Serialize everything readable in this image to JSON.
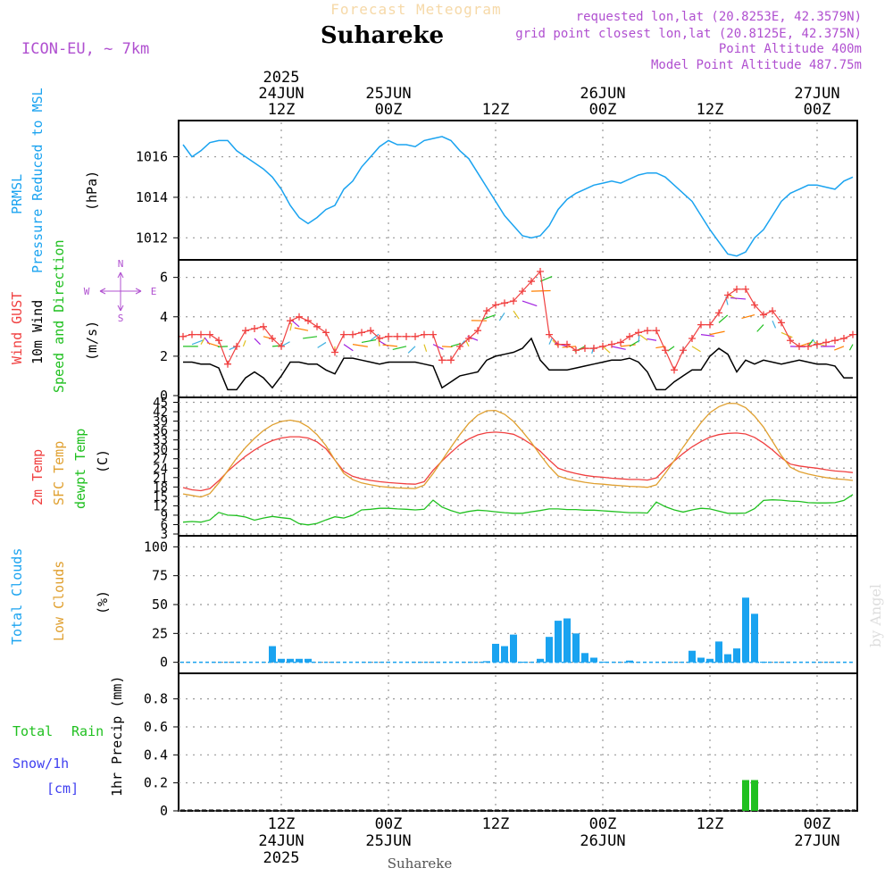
{
  "header": {
    "faded_title": "Forecast Meteogram",
    "location": "Suhareke",
    "model": "ICON-EU, ~ 7km",
    "requested": "requested lon,lat (20.8253E, 42.3579N)",
    "grid_point": "grid point closest lon,lat (20.8125E, 42.375N)",
    "point_altitude": "Point Altitude 400m",
    "model_altitude": "Model Point Altitude 487.75m",
    "footer_location": "Suhareke",
    "credit": "by Angel"
  },
  "time_axis": {
    "top_labels": [
      {
        "hour": 12,
        "lines": [
          "2025",
          "24JUN",
          "12Z"
        ]
      },
      {
        "hour": 24,
        "lines": [
          "25JUN",
          "00Z"
        ]
      },
      {
        "hour": 36,
        "lines": [
          "12Z"
        ]
      },
      {
        "hour": 48,
        "lines": [
          "26JUN",
          "00Z"
        ]
      },
      {
        "hour": 60,
        "lines": [
          "12Z"
        ]
      },
      {
        "hour": 72,
        "lines": [
          "27JUN",
          "00Z"
        ]
      }
    ],
    "bottom_labels": [
      {
        "hour": 12,
        "lines": [
          "12Z",
          "24JUN",
          "2025"
        ]
      },
      {
        "hour": 24,
        "lines": [
          "00Z",
          "25JUN"
        ]
      },
      {
        "hour": 36,
        "lines": [
          "12Z"
        ]
      },
      {
        "hour": 48,
        "lines": [
          "00Z",
          "26JUN"
        ]
      },
      {
        "hour": 60,
        "lines": [
          "12Z"
        ]
      },
      {
        "hour": 72,
        "lines": [
          "00Z",
          "27JUN"
        ]
      }
    ]
  },
  "panels": {
    "pressure": {
      "labels": [
        "PRMSL",
        "Pressure Reduced to MSL"
      ],
      "unit": "(hPa)"
    },
    "wind": {
      "labels": [
        "Wind GUST",
        "10m Wind",
        "Speed and Direction"
      ],
      "unit": "(m/s)",
      "compass": [
        "N",
        "W",
        "E",
        "S"
      ]
    },
    "temp": {
      "labels": [
        "2m Temp",
        "SFC Temp",
        "dewpt Temp"
      ],
      "unit": "(C)"
    },
    "clouds": {
      "labels": [
        "Total Clouds",
        "Low Clouds"
      ],
      "unit": "(%)"
    },
    "precip": {
      "labels": [
        "Total",
        "Rain",
        "Snow/1h",
        "[cm]"
      ],
      "unit": "1hr Precip (mm)"
    }
  },
  "colors": {
    "pressure": "#1aa3f0",
    "gust": "#f04040",
    "wind": "#000000",
    "temp2m": "#f04040",
    "sfc": "#e0a030",
    "dewpt": "#20c020",
    "clouds": "#1aa3f0",
    "low_clouds": "#e0a030",
    "rain": "#20c020",
    "snow": "#4040f0",
    "header_purple": "#b050d0",
    "grid": "#999999"
  },
  "chart_data": [
    {
      "type": "line",
      "title": "PRMSL Pressure Reduced to MSL",
      "ylabel": "(hPa)",
      "ylim": [
        1011,
        1017.7
      ],
      "yticks": [
        1012,
        1014,
        1016
      ],
      "x": [
        1,
        2,
        3,
        4,
        5,
        6,
        7,
        8,
        9,
        10,
        11,
        12,
        13,
        14,
        15,
        16,
        17,
        18,
        19,
        20,
        21,
        22,
        23,
        24,
        25,
        26,
        27,
        28,
        29,
        30,
        31,
        32,
        33,
        34,
        35,
        36,
        37,
        38,
        39,
        40,
        41,
        42,
        43,
        44,
        45,
        46,
        47,
        48,
        49,
        50,
        51,
        52,
        53,
        54,
        55,
        56,
        57,
        58,
        59,
        60,
        61,
        62,
        63,
        64,
        65,
        66,
        67,
        68,
        69,
        70,
        71,
        72,
        73,
        74,
        75,
        76
      ],
      "values": [
        1016.6,
        1016.0,
        1016.3,
        1016.7,
        1016.8,
        1016.8,
        1016.3,
        1016.0,
        1015.7,
        1015.4,
        1015.0,
        1014.4,
        1013.6,
        1013.0,
        1012.7,
        1013.0,
        1013.4,
        1013.6,
        1014.4,
        1014.8,
        1015.5,
        1016.0,
        1016.5,
        1016.8,
        1016.6,
        1016.6,
        1016.5,
        1016.8,
        1016.9,
        1017.0,
        1016.8,
        1016.3,
        1015.9,
        1015.2,
        1014.5,
        1013.8,
        1013.1,
        1012.6,
        1012.1,
        1012.0,
        1012.1,
        1012.6,
        1013.4,
        1013.9,
        1014.2,
        1014.4,
        1014.6,
        1014.7,
        1014.8,
        1014.7,
        1014.9,
        1015.1,
        1015.2,
        1015.2,
        1015.0,
        1014.6,
        1014.2,
        1013.8,
        1013.1,
        1012.4,
        1011.8,
        1011.2,
        1011.1,
        1011.3,
        1012.0,
        1012.4,
        1013.1,
        1013.8,
        1014.2,
        1014.4,
        1014.6,
        1014.6,
        1014.5,
        1014.4,
        1014.8,
        1015.0
      ]
    },
    {
      "type": "line",
      "title": "Wind GUST / 10m Wind Speed and Direction",
      "ylabel": "(m/s)",
      "ylim": [
        0,
        6.8
      ],
      "yticks": [
        0,
        2,
        4,
        6
      ],
      "x": [
        1,
        2,
        3,
        4,
        5,
        6,
        7,
        8,
        9,
        10,
        11,
        12,
        13,
        14,
        15,
        16,
        17,
        18,
        19,
        20,
        21,
        22,
        23,
        24,
        25,
        26,
        27,
        28,
        29,
        30,
        31,
        32,
        33,
        34,
        35,
        36,
        37,
        38,
        39,
        40,
        41,
        42,
        43,
        44,
        45,
        46,
        47,
        48,
        49,
        50,
        51,
        52,
        53,
        54,
        55,
        56,
        57,
        58,
        59,
        60,
        61,
        62,
        63,
        64,
        65,
        66,
        67,
        68,
        69,
        70,
        71,
        72,
        73,
        74,
        75,
        76
      ],
      "series": [
        {
          "name": "Wind GUST",
          "values": [
            3.0,
            3.1,
            3.1,
            3.1,
            2.8,
            1.6,
            2.5,
            3.3,
            3.4,
            3.5,
            2.9,
            2.5,
            3.8,
            4.0,
            3.8,
            3.5,
            3.2,
            2.2,
            3.1,
            3.1,
            3.2,
            3.3,
            2.9,
            3.0,
            3.0,
            3.0,
            3.0,
            3.1,
            3.1,
            1.8,
            1.8,
            2.5,
            2.9,
            3.3,
            4.3,
            4.6,
            4.7,
            4.8,
            5.3,
            5.8,
            6.3,
            3.1,
            2.6,
            2.6,
            2.3,
            2.4,
            2.4,
            2.5,
            2.6,
            2.7,
            3.0,
            3.2,
            3.3,
            3.3,
            2.3,
            1.3,
            2.3,
            2.9,
            3.6,
            3.6,
            4.2,
            5.1,
            5.4,
            5.4,
            4.6,
            4.1,
            4.3,
            3.7,
            2.8,
            2.5,
            2.5,
            2.6,
            2.7,
            2.8,
            2.9,
            3.1
          ]
        },
        {
          "name": "10m Wind",
          "values": [
            1.7,
            1.7,
            1.6,
            1.6,
            1.4,
            0.3,
            0.3,
            0.9,
            1.2,
            0.9,
            0.4,
            1.0,
            1.7,
            1.7,
            1.6,
            1.6,
            1.3,
            1.1,
            1.9,
            1.9,
            1.8,
            1.7,
            1.6,
            1.7,
            1.7,
            1.7,
            1.7,
            1.6,
            1.5,
            0.4,
            0.7,
            1.0,
            1.1,
            1.2,
            1.8,
            2.0,
            2.1,
            2.2,
            2.4,
            2.9,
            1.8,
            1.3,
            1.3,
            1.3,
            1.4,
            1.5,
            1.6,
            1.7,
            1.8,
            1.8,
            1.9,
            1.7,
            1.2,
            0.3,
            0.3,
            0.7,
            1.0,
            1.3,
            1.3,
            2.0,
            2.4,
            2.1,
            1.2,
            1.8,
            1.6,
            1.8,
            1.7,
            1.6,
            1.7,
            1.8,
            1.7,
            1.6,
            1.6,
            1.5,
            0.9,
            0.9
          ]
        }
      ]
    },
    {
      "type": "line",
      "title": "2m Temp / SFC Temp / dewpt Temp",
      "ylabel": "(C)",
      "ylim": [
        3,
        46
      ],
      "yticks": [
        3,
        6,
        9,
        12,
        15,
        18,
        21,
        24,
        27,
        30,
        33,
        36,
        39,
        42,
        45
      ],
      "x": [
        1,
        2,
        3,
        4,
        5,
        6,
        7,
        8,
        9,
        10,
        11,
        12,
        13,
        14,
        15,
        16,
        17,
        18,
        19,
        20,
        21,
        22,
        23,
        24,
        25,
        26,
        27,
        28,
        29,
        30,
        31,
        32,
        33,
        34,
        35,
        36,
        37,
        38,
        39,
        40,
        41,
        42,
        43,
        44,
        45,
        46,
        47,
        48,
        49,
        50,
        51,
        52,
        53,
        54,
        55,
        56,
        57,
        58,
        59,
        60,
        61,
        62,
        63,
        64,
        65,
        66,
        67,
        68,
        69,
        70,
        71,
        72,
        73,
        74,
        75,
        76
      ],
      "series": [
        {
          "name": "2m Temp",
          "values": [
            17.8,
            17.1,
            16.8,
            17.5,
            20.0,
            23.0,
            25.5,
            27.8,
            29.8,
            31.5,
            32.8,
            33.6,
            34.0,
            34.0,
            33.6,
            32.4,
            30.2,
            26.6,
            23.0,
            21.4,
            20.6,
            20.1,
            19.7,
            19.4,
            19.2,
            19.0,
            18.9,
            19.7,
            23.3,
            26.3,
            29.0,
            31.5,
            33.3,
            34.6,
            35.3,
            35.5,
            35.3,
            34.8,
            33.4,
            31.6,
            29.4,
            26.6,
            24.0,
            23.0,
            22.3,
            21.7,
            21.3,
            21.1,
            20.8,
            20.6,
            20.4,
            20.4,
            20.2,
            20.9,
            23.7,
            26.3,
            28.7,
            30.8,
            32.5,
            33.9,
            34.7,
            35.1,
            35.2,
            34.9,
            33.8,
            32.0,
            29.8,
            27.3,
            25.3,
            24.7,
            24.3,
            24.0,
            23.5,
            23.1,
            22.9,
            22.6
          ]
        },
        {
          "name": "SFC Temp",
          "values": [
            15.8,
            15.3,
            14.8,
            15.9,
            19.3,
            23.2,
            27.2,
            30.6,
            33.5,
            36.0,
            37.8,
            38.9,
            39.3,
            38.8,
            37.2,
            34.7,
            31.2,
            26.6,
            22.3,
            20.3,
            19.3,
            18.7,
            18.2,
            17.9,
            17.7,
            17.6,
            17.5,
            18.6,
            22.3,
            26.5,
            30.7,
            34.7,
            38.3,
            40.9,
            42.3,
            42.4,
            41.2,
            38.9,
            35.7,
            32.2,
            28.2,
            24.5,
            21.5,
            20.6,
            20.0,
            19.5,
            19.1,
            18.9,
            18.6,
            18.4,
            18.2,
            18.1,
            17.9,
            18.7,
            22.4,
            26.4,
            30.7,
            34.7,
            38.5,
            41.7,
            43.6,
            44.7,
            44.6,
            43.3,
            40.6,
            37.1,
            32.6,
            28.0,
            24.3,
            22.9,
            22.1,
            21.5,
            21.0,
            20.6,
            20.4,
            20.1
          ]
        },
        {
          "name": "dewpt Temp",
          "values": [
            6.8,
            7.0,
            6.8,
            7.5,
            9.9,
            9.0,
            8.9,
            8.4,
            7.4,
            8.1,
            8.6,
            8.2,
            7.9,
            6.3,
            5.9,
            6.4,
            7.5,
            8.5,
            8.1,
            9.0,
            10.7,
            10.9,
            11.2,
            11.2,
            11.0,
            10.9,
            10.7,
            10.9,
            13.8,
            11.6,
            10.5,
            9.6,
            10.2,
            10.6,
            10.4,
            10.1,
            9.8,
            9.6,
            9.6,
            10.1,
            10.5,
            11.0,
            11.0,
            10.8,
            10.8,
            10.6,
            10.6,
            10.4,
            10.2,
            10.0,
            9.8,
            9.8,
            9.7,
            13.2,
            11.7,
            10.7,
            10.0,
            10.7,
            11.2,
            11.0,
            10.3,
            9.6,
            9.6,
            9.7,
            11.1,
            13.7,
            13.9,
            13.8,
            13.5,
            13.4,
            13.0,
            12.9,
            12.9,
            13.0,
            13.7,
            15.6
          ]
        }
      ]
    },
    {
      "type": "bar",
      "title": "Total Clouds / Low Clouds",
      "ylabel": "(%)",
      "ylim": [
        -8,
        108
      ],
      "yticks": [
        0,
        25,
        50,
        75,
        100
      ],
      "x": [
        11,
        12,
        13,
        14,
        15,
        35,
        36,
        37,
        38,
        39,
        41,
        42,
        43,
        44,
        45,
        46,
        47,
        48,
        51,
        58,
        59,
        60,
        61,
        62,
        63,
        64,
        65,
        66
      ],
      "series": [
        {
          "name": "Total Clouds",
          "values": [
            14,
            3,
            3,
            3,
            3,
            1,
            16,
            14,
            24,
            0.5,
            3,
            22,
            36,
            38,
            25,
            8,
            4,
            0.5,
            1.5,
            10,
            4,
            3,
            18,
            7,
            12,
            56,
            42,
            0.5
          ]
        }
      ]
    },
    {
      "type": "bar",
      "title": "Total Rain Snow/1h",
      "ylabel": "1hr Precip (mm)",
      "ylim": [
        0,
        0.97
      ],
      "yticks": [
        0,
        0.2,
        0.4,
        0.6,
        0.8
      ],
      "x": [
        64,
        65
      ],
      "series": [
        {
          "name": "Total Rain",
          "values": [
            0.22,
            0.22
          ]
        }
      ]
    }
  ]
}
